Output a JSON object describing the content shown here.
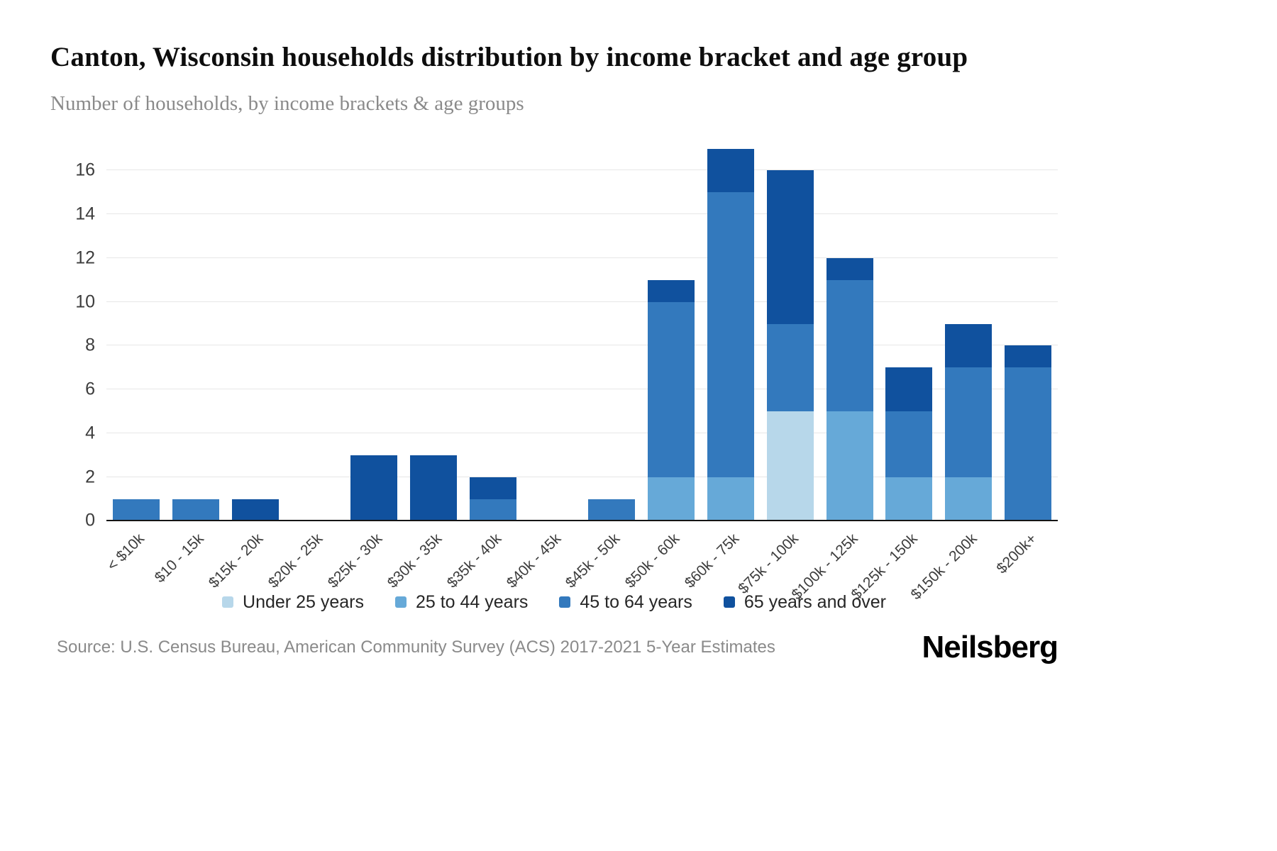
{
  "header": {
    "title": "Canton, Wisconsin households distribution by income bracket and age group",
    "subtitle": "Number of households, by income brackets & age groups"
  },
  "chart_data": {
    "type": "bar",
    "stacked": true,
    "title": "Canton, Wisconsin households distribution by income bracket and age group",
    "xlabel": "",
    "ylabel": "Number of households",
    "ylim": [
      0,
      17
    ],
    "yticks": [
      0,
      2,
      4,
      6,
      8,
      10,
      12,
      14,
      16
    ],
    "grid": true,
    "legend_position": "bottom",
    "categories": [
      "< $10k",
      "$10 - 15k",
      "$15k - 20k",
      "$20k - 25k",
      "$25k - 30k",
      "$30k - 35k",
      "$35k - 40k",
      "$40k - 45k",
      "$45k - 50k",
      "$50k - 60k",
      "$60k - 75k",
      "$75k - 100k",
      "$100k - 125k",
      "$125k - 150k",
      "$150k - 200k",
      "$200k+"
    ],
    "series": [
      {
        "name": "Under 25 years",
        "color": "#b7d7ea",
        "values": [
          0,
          0,
          0,
          0,
          0,
          0,
          0,
          0,
          0,
          0,
          0,
          5,
          0,
          0,
          0,
          0
        ]
      },
      {
        "name": "25 to 44 years",
        "color": "#66a9d8",
        "values": [
          0,
          0,
          0,
          0,
          0,
          0,
          0,
          0,
          0,
          2,
          2,
          0,
          5,
          2,
          2,
          0
        ]
      },
      {
        "name": "45 to 64 years",
        "color": "#3379bd",
        "values": [
          1,
          1,
          0,
          0,
          0,
          0,
          1,
          0,
          1,
          8,
          13,
          4,
          6,
          3,
          5,
          7
        ]
      },
      {
        "name": "65 years and over",
        "color": "#10519e",
        "values": [
          0,
          0,
          1,
          0,
          3,
          3,
          1,
          0,
          0,
          1,
          2,
          7,
          1,
          2,
          2,
          1
        ]
      }
    ]
  },
  "footer": {
    "source": "Source: U.S. Census Bureau, American Community Survey (ACS) 2017-2021 5-Year Estimates",
    "logo": "Neilsberg"
  }
}
